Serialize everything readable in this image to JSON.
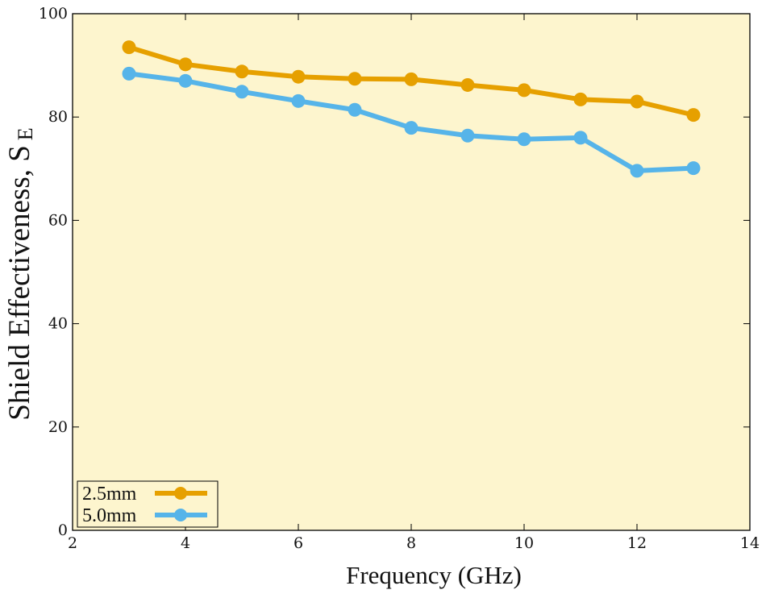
{
  "chart_data": {
    "type": "line",
    "title": "",
    "xlabel": "Frequency (GHz)",
    "ylabel": "Shield Effectiveness, S",
    "ylabel_subscript": "E",
    "xlim": [
      2,
      14
    ],
    "ylim": [
      0,
      100
    ],
    "xticks": [
      2,
      4,
      6,
      8,
      10,
      12,
      14
    ],
    "yticks": [
      0,
      20,
      40,
      60,
      80,
      100
    ],
    "grid": false,
    "legend_position": "bottom-left",
    "plot_background": "#fdf5ce",
    "series": [
      {
        "name": "2.5mm",
        "color": "#e6a000",
        "x": [
          3,
          4,
          5,
          6,
          7,
          8,
          9,
          10,
          11,
          12,
          13
        ],
        "y": [
          93.5,
          90.2,
          88.8,
          87.8,
          87.4,
          87.3,
          86.2,
          85.2,
          83.4,
          83.0,
          80.4
        ]
      },
      {
        "name": "5.0mm",
        "color": "#56b4e9",
        "x": [
          3,
          4,
          5,
          6,
          7,
          8,
          9,
          10,
          11,
          12,
          13
        ],
        "y": [
          88.4,
          87.0,
          84.9,
          83.1,
          81.4,
          77.9,
          76.4,
          75.7,
          76.0,
          69.6,
          70.1
        ]
      }
    ]
  }
}
